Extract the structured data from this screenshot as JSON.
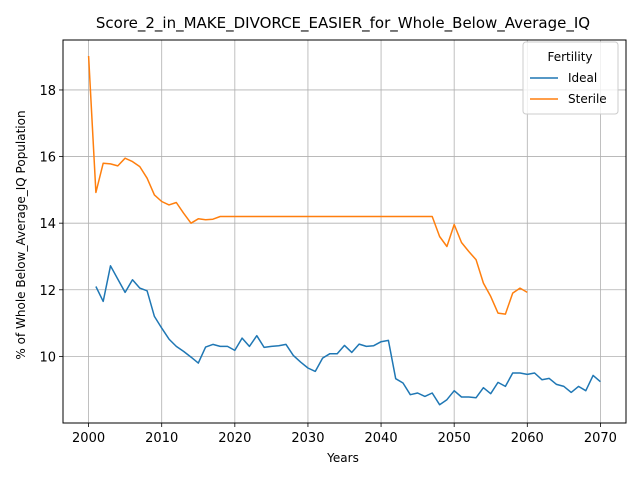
{
  "chart_data": {
    "type": "line",
    "title": "Score_2_in_MAKE_DIVORCE_EASIER_for_Whole_Below_Average_IQ",
    "xlabel": "Years",
    "ylabel": "% of Whole Below_Average_IQ Population",
    "xlim": [
      1996.5,
      2073.5
    ],
    "ylim": [
      8.0,
      19.5
    ],
    "xticks": [
      2000,
      2010,
      2020,
      2030,
      2040,
      2050,
      2060,
      2070
    ],
    "yticks": [
      10,
      12,
      14,
      16,
      18
    ],
    "grid": true,
    "legend": {
      "title": "Fertility",
      "placement": "top-right"
    },
    "series": [
      {
        "name": "Ideal",
        "color": "#1f77b4",
        "x": [
          2001,
          2002,
          2003,
          2004,
          2005,
          2006,
          2007,
          2008,
          2009,
          2010,
          2011,
          2012,
          2013,
          2014,
          2015,
          2016,
          2017,
          2018,
          2019,
          2020,
          2021,
          2022,
          2023,
          2024,
          2025,
          2026,
          2027,
          2028,
          2029,
          2030,
          2031,
          2032,
          2033,
          2034,
          2035,
          2036,
          2037,
          2038,
          2039,
          2040,
          2041,
          2042,
          2043,
          2044,
          2045,
          2046,
          2047,
          2048,
          2049,
          2050,
          2051,
          2052,
          2053,
          2054,
          2055,
          2056,
          2057,
          2058,
          2059,
          2060,
          2061,
          2062,
          2063,
          2064,
          2065,
          2066,
          2067,
          2068,
          2069,
          2070
        ],
        "values": [
          12.1,
          11.65,
          12.72,
          12.32,
          11.92,
          12.3,
          12.05,
          11.97,
          11.2,
          10.85,
          10.52,
          10.3,
          10.15,
          9.98,
          9.8,
          10.28,
          10.36,
          10.3,
          10.3,
          10.18,
          10.55,
          10.3,
          10.62,
          10.27,
          10.3,
          10.32,
          10.36,
          10.03,
          9.83,
          9.65,
          9.55,
          9.95,
          10.08,
          10.08,
          10.33,
          10.12,
          10.37,
          10.3,
          10.32,
          10.44,
          10.48,
          9.33,
          9.2,
          8.85,
          8.9,
          8.8,
          8.9,
          8.55,
          8.7,
          8.97,
          8.78,
          8.78,
          8.76,
          9.06,
          8.88,
          9.22,
          9.1,
          9.5,
          9.5,
          9.46,
          9.5,
          9.3,
          9.34,
          9.16,
          9.1,
          8.92,
          9.1,
          8.97,
          9.43,
          9.24
        ]
      },
      {
        "name": "Sterile",
        "color": "#ff7f0e",
        "x": [
          2000,
          2001,
          2002,
          2003,
          2004,
          2005,
          2006,
          2007,
          2008,
          2009,
          2010,
          2011,
          2012,
          2013,
          2014,
          2015,
          2016,
          2017,
          2018,
          2019,
          2020,
          2021,
          2022,
          2023,
          2024,
          2025,
          2026,
          2027,
          2028,
          2029,
          2030,
          2031,
          2032,
          2033,
          2034,
          2035,
          2036,
          2037,
          2038,
          2039,
          2040,
          2041,
          2042,
          2043,
          2044,
          2045,
          2046,
          2047,
          2048,
          2049,
          2050,
          2051,
          2052,
          2053,
          2054,
          2055,
          2056,
          2057,
          2058,
          2059,
          2060
        ],
        "values": [
          19.02,
          14.92,
          15.8,
          15.78,
          15.72,
          15.95,
          15.85,
          15.7,
          15.35,
          14.85,
          14.65,
          14.55,
          14.62,
          14.3,
          14.0,
          14.13,
          14.1,
          14.12,
          14.2,
          14.2,
          14.2,
          14.2,
          14.2,
          14.2,
          14.2,
          14.2,
          14.2,
          14.2,
          14.2,
          14.2,
          14.2,
          14.2,
          14.2,
          14.2,
          14.2,
          14.2,
          14.2,
          14.2,
          14.2,
          14.2,
          14.2,
          14.2,
          14.2,
          14.2,
          14.2,
          14.2,
          14.2,
          14.2,
          13.6,
          13.3,
          13.96,
          13.42,
          13.15,
          12.9,
          12.2,
          11.8,
          11.3,
          11.27,
          11.9,
          12.05,
          11.92
        ]
      }
    ]
  }
}
